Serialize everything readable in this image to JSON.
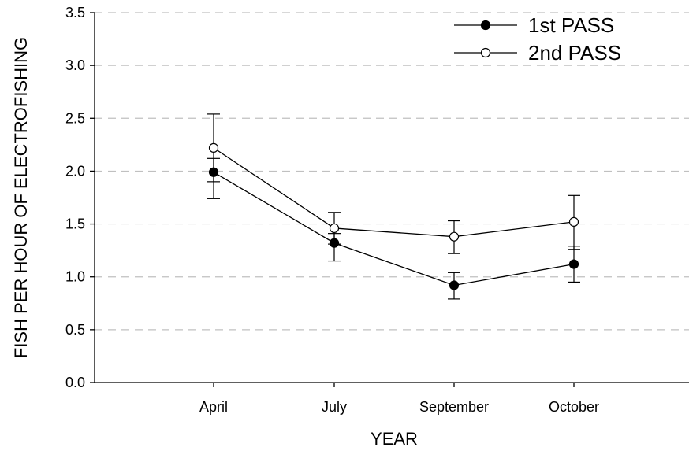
{
  "chart_data": {
    "type": "line",
    "title": "",
    "xlabel": "YEAR",
    "ylabel": "FISH PER HOUR OF ELECTROFISHING",
    "categories": [
      "April",
      "July",
      "September",
      "October"
    ],
    "ylim": [
      0.0,
      3.5
    ],
    "yticks": [
      "0.0",
      "0.5",
      "1.0",
      "1.5",
      "2.0",
      "2.5",
      "3.0",
      "3.5"
    ],
    "grid": "horizontal dashed",
    "legend_position": "top-right",
    "series": [
      {
        "name": "1st PASS",
        "marker": "filled-circle",
        "values": [
          1.99,
          1.32,
          0.92,
          1.12
        ],
        "err_low": [
          1.74,
          1.15,
          0.79,
          0.95
        ],
        "err_high": [
          2.12,
          1.41,
          1.04,
          1.29
        ]
      },
      {
        "name": "2nd PASS",
        "marker": "open-circle",
        "values": [
          2.22,
          1.46,
          1.38,
          1.52
        ],
        "err_low": [
          1.9,
          1.31,
          1.22,
          1.26
        ],
        "err_high": [
          2.54,
          1.61,
          1.53,
          1.77
        ]
      }
    ]
  }
}
